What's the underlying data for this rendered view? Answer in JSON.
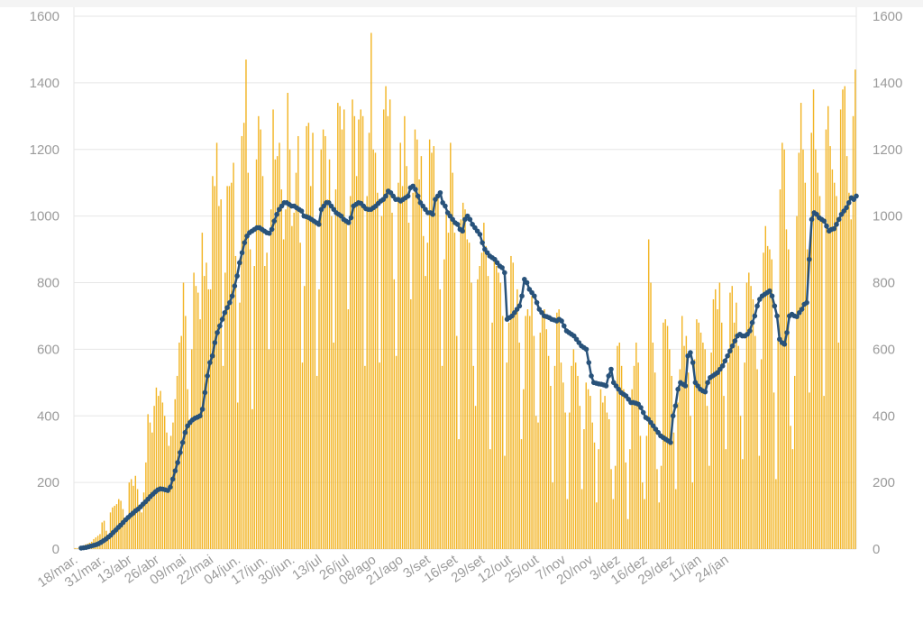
{
  "chart_data": {
    "type": "bar",
    "title": "",
    "xlabel": "",
    "ylabel": "",
    "ylim": [
      0,
      1600
    ],
    "y_ticks": [
      0,
      200,
      400,
      600,
      800,
      1000,
      1200,
      1400,
      1600
    ],
    "y_axes": [
      "left",
      "right"
    ],
    "grid": true,
    "x_tick_labels": [
      "18/mar.",
      "31/mar.",
      "13/abr",
      "26/abr",
      "09/mai",
      "22/mai",
      "04/jun.",
      "17/jun.",
      "30/jun.",
      "13/jul",
      "26/jul",
      "08/ago",
      "21/ago",
      "3/set",
      "16/set",
      "29/set",
      "12/out",
      "25/out",
      "7/nov",
      "20/nov",
      "3/dez",
      "16/dez",
      "29/dez",
      "11/jan",
      "24/jan"
    ],
    "colors": {
      "bars": "#f2b526",
      "line": "#28527a",
      "grid": "#e6e6e6",
      "ticks": "#9b9b9b"
    },
    "series": [
      {
        "type": "bar",
        "values": [
          3,
          3,
          6,
          9,
          11,
          14,
          16,
          19,
          22,
          30,
          35,
          40,
          45,
          80,
          85,
          55,
          40,
          110,
          125,
          130,
          135,
          150,
          145,
          120,
          80,
          100,
          200,
          210,
          190,
          220,
          180,
          130,
          110,
          170,
          260,
          405,
          380,
          350,
          430,
          485,
          460,
          475,
          440,
          400,
          350,
          310,
          340,
          380,
          450,
          520,
          620,
          640,
          800,
          700,
          480,
          390,
          600,
          830,
          790,
          770,
          690,
          950,
          820,
          860,
          780,
          780,
          1120,
          1090,
          1220,
          1030,
          1050,
          550,
          830,
          1090,
          1090,
          1100,
          1160,
          880,
          440,
          740,
          1240,
          1280,
          1470,
          1130,
          900,
          420,
          850,
          1170,
          1300,
          1260,
          1120,
          850,
          890,
          600,
          1020,
          1320,
          1170,
          1180,
          1220,
          1080,
          930,
          1020,
          1370,
          1200,
          970,
          1010,
          1130,
          1240,
          920,
          560,
          790,
          1270,
          1280,
          1090,
          1250,
          990,
          520,
          780,
          1200,
          1260,
          1240,
          1050,
          1170,
          1000,
          620,
          1080,
          1340,
          1330,
          1260,
          1320,
          980,
          720,
          1060,
          1350,
          1300,
          1120,
          1290,
          1320,
          1300,
          550,
          1060,
          1250,
          1550,
          1200,
          1190,
          1070,
          560,
          1000,
          1320,
          1390,
          1300,
          1350,
          1010,
          810,
          580,
          1100,
          1220,
          1090,
          1300,
          1150,
          980,
          750,
          1070,
          1260,
          1230,
          1110,
          1180,
          940,
          820,
          920,
          1230,
          1190,
          1210,
          1060,
          1060,
          780,
          550,
          870,
          1020,
          950,
          1220,
          1130,
          950,
          640,
          330,
          990,
          1040,
          1020,
          930,
          920,
          800,
          550,
          430,
          810,
          850,
          890,
          980,
          910,
          820,
          300,
          680,
          870,
          850,
          830,
          800,
          700,
          280,
          560,
          680,
          880,
          860,
          720,
          780,
          620,
          330,
          480,
          700,
          720,
          700,
          760,
          640,
          400,
          380,
          650,
          700,
          720,
          660,
          580,
          490,
          200,
          550,
          710,
          720,
          560,
          500,
          410,
          150,
          410,
          550,
          600,
          560,
          520,
          430,
          180,
          360,
          500,
          480,
          460,
          380,
          320,
          140,
          300,
          480,
          440,
          460,
          410,
          390,
          240,
          150,
          250,
          610,
          620,
          550,
          480,
          260,
          90,
          300,
          480,
          550,
          620,
          560,
          340,
          200,
          150,
          340,
          930,
          800,
          620,
          530,
          240,
          140,
          250,
          680,
          690,
          670,
          600,
          520,
          350,
          180,
          440,
          540,
          700,
          610,
          640,
          530,
          400,
          200,
          570,
          690,
          680,
          650,
          620,
          600,
          430,
          250,
          590,
          750,
          780,
          720,
          800,
          680,
          460,
          300,
          560,
          770,
          790,
          680,
          740,
          610,
          400,
          270,
          560,
          800,
          830,
          790,
          750,
          640,
          540,
          280,
          570,
          890,
          970,
          910,
          900,
          870,
          470,
          210,
          630,
          1080,
          1220,
          1200,
          960,
          900,
          370,
          300,
          520,
          1000,
          1190,
          1340,
          1200,
          1100,
          900,
          470,
          1250,
          1380,
          1200,
          1130,
          1060,
          990,
          460,
          1260,
          1330,
          1210,
          1140,
          1100,
          1060,
          620,
          1320,
          1380,
          1390,
          1180,
          1070,
          990,
          1300,
          1440
        ]
      },
      {
        "type": "line",
        "values": [
          3,
          4,
          5,
          7,
          9,
          11,
          13,
          16,
          20,
          25,
          30,
          36,
          42,
          50,
          57,
          65,
          72,
          80,
          88,
          95,
          102,
          108,
          115,
          120,
          127,
          135,
          142,
          150,
          158,
          165,
          172,
          178,
          181,
          180,
          178,
          176,
          186,
          210,
          235,
          260,
          290,
          320,
          350,
          370,
          380,
          388,
          393,
          396,
          400,
          420,
          470,
          520,
          560,
          580,
          620,
          650,
          670,
          690,
          710,
          725,
          740,
          760,
          790,
          820,
          860,
          890,
          920,
          940,
          950,
          955,
          960,
          965,
          965,
          960,
          955,
          950,
          948,
          960,
          985,
          1005,
          1020,
          1030,
          1040,
          1040,
          1035,
          1030,
          1030,
          1025,
          1020,
          1015,
          1000,
          998,
          995,
          990,
          985,
          980,
          975,
          1020,
          1030,
          1040,
          1040,
          1030,
          1020,
          1010,
          1005,
          1000,
          990,
          985,
          980,
          995,
          1030,
          1035,
          1040,
          1038,
          1030,
          1022,
          1020,
          1020,
          1025,
          1030,
          1038,
          1045,
          1050,
          1060,
          1075,
          1070,
          1060,
          1050,
          1050,
          1045,
          1050,
          1055,
          1060,
          1085,
          1090,
          1080,
          1060,
          1040,
          1030,
          1020,
          1010,
          1010,
          1005,
          1050,
          1060,
          1070,
          1040,
          1030,
          1010,
          1000,
          990,
          980,
          975,
          960,
          955,
          990,
          1000,
          990,
          975,
          965,
          955,
          945,
          920,
          900,
          890,
          880,
          875,
          870,
          860,
          850,
          845,
          830,
          690,
          695,
          700,
          710,
          720,
          730,
          760,
          810,
          800,
          780,
          770,
          760,
          740,
          720,
          710,
          700,
          698,
          695,
          690,
          688,
          685,
          690,
          685,
          670,
          655,
          650,
          645,
          640,
          630,
          620,
          610,
          605,
          600,
          560,
          520,
          500,
          498,
          496,
          495,
          493,
          490,
          520,
          540,
          500,
          490,
          480,
          470,
          465,
          460,
          450,
          440,
          440,
          438,
          435,
          425,
          410,
          395,
          390,
          380,
          370,
          360,
          350,
          340,
          335,
          330,
          325,
          320,
          400,
          430,
          480,
          500,
          495,
          490,
          580,
          590,
          560,
          500,
          490,
          480,
          475,
          472,
          500,
          515,
          520,
          525,
          530,
          540,
          550,
          565,
          580,
          595,
          610,
          625,
          640,
          645,
          640,
          640,
          645,
          655,
          680,
          700,
          730,
          750,
          760,
          765,
          770,
          775,
          760,
          730,
          700,
          630,
          620,
          615,
          650,
          700,
          705,
          700,
          698,
          710,
          720,
          735,
          740,
          870,
          990,
          1010,
          1005,
          995,
          990,
          985,
          970,
          955,
          960,
          962,
          975,
          990,
          1005,
          1015,
          1025,
          1040,
          1055,
          1050,
          1060
        ]
      }
    ]
  }
}
